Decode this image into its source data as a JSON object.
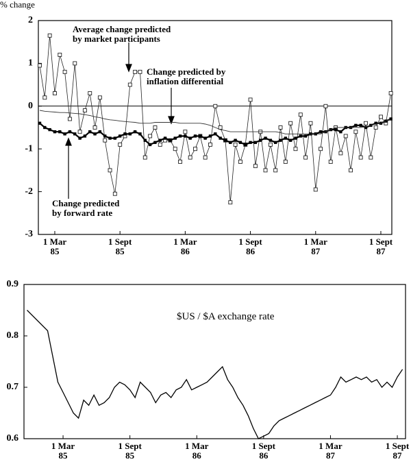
{
  "chart_data": [
    {
      "type": "line",
      "ylabel": "% change",
      "categories": [
        null,
        null,
        null,
        "1 Mar\n85",
        null,
        null,
        null,
        null,
        null,
        null,
        null,
        null,
        null,
        null,
        null,
        null,
        "1 Sept\n85",
        null,
        null,
        null,
        null,
        null,
        null,
        null,
        null,
        null,
        null,
        null,
        null,
        "1 Mar\n86",
        null,
        null,
        null,
        null,
        null,
        null,
        null,
        null,
        null,
        null,
        null,
        null,
        "1 Sept\n86",
        null,
        null,
        null,
        null,
        null,
        null,
        null,
        null,
        null,
        null,
        null,
        null,
        "1 Mar\n87",
        null,
        null,
        null,
        null,
        null,
        null,
        null,
        null,
        null,
        null,
        null,
        null,
        "1 Sept\n87",
        null,
        null
      ],
      "ylim": [
        -3,
        2
      ],
      "yticks": [
        -3,
        -2,
        -1,
        0,
        1,
        2
      ],
      "zero_line": true,
      "series": [
        {
          "name": "Average change predicted\nby market participants",
          "color": "#222",
          "marker": "open-square",
          "line_width": 0.8,
          "values": [
            0.95,
            0.2,
            1.65,
            0.3,
            1.2,
            0.8,
            -0.3,
            1.0,
            -0.6,
            -0.1,
            0.3,
            -0.5,
            0.2,
            -0.8,
            -1.5,
            -2.05,
            -0.9,
            -0.7,
            0.5,
            0.8,
            0.8,
            -1.2,
            -0.7,
            -0.5,
            -0.9,
            -0.8,
            -0.8,
            -1.0,
            -1.3,
            -0.6,
            -1.2,
            -1.0,
            -0.7,
            -1.2,
            -0.9,
            0.0,
            -0.5,
            -0.8,
            -2.25,
            -0.9,
            -1.3,
            -0.9,
            0.15,
            -1.4,
            -0.6,
            -1.5,
            -0.9,
            -1.5,
            -0.5,
            -1.3,
            -0.4,
            -1.0,
            -0.2,
            -1.2,
            -0.4,
            -1.95,
            -1.0,
            0.0,
            -1.3,
            -0.5,
            -1.1,
            -0.7,
            -1.5,
            -0.6,
            -1.2,
            -0.4,
            -1.2,
            -0.5,
            -0.25,
            -0.4,
            0.3
          ]
        },
        {
          "name": "Change predicted\nby forward rate",
          "color": "#000",
          "marker": "filled-square",
          "line_width": 2.2,
          "values": [
            -0.4,
            -0.5,
            -0.55,
            -0.6,
            -0.6,
            -0.65,
            -0.6,
            -0.65,
            -0.75,
            -0.7,
            -0.6,
            -0.65,
            -0.6,
            -0.7,
            -0.75,
            -0.75,
            -0.7,
            -0.65,
            -0.65,
            -0.6,
            -0.65,
            -0.8,
            -0.9,
            -0.85,
            -0.8,
            -0.75,
            -0.8,
            -0.75,
            -0.7,
            -0.7,
            -0.75,
            -0.7,
            -0.7,
            -0.75,
            -0.7,
            -0.65,
            -0.75,
            -0.8,
            -0.85,
            -0.8,
            -0.85,
            -0.9,
            -0.85,
            -0.85,
            -0.8,
            -0.75,
            -0.8,
            -0.85,
            -0.8,
            -0.75,
            -0.8,
            -0.75,
            -0.7,
            -0.7,
            -0.65,
            -0.65,
            -0.6,
            -0.6,
            -0.55,
            -0.55,
            -0.6,
            -0.5,
            -0.5,
            -0.45,
            -0.45,
            -0.5,
            -0.45,
            -0.4,
            -0.4,
            -0.35,
            -0.3
          ]
        },
        {
          "name": "Change predicted by\ninflation differential",
          "color": "#333",
          "marker": "none",
          "line_width": 0.9,
          "values": [
            -0.1,
            -0.12,
            -0.13,
            -0.14,
            -0.15,
            -0.15,
            -0.16,
            -0.17,
            -0.18,
            -0.2,
            -0.22,
            -0.25,
            -0.27,
            -0.3,
            -0.32,
            -0.33,
            -0.35,
            -0.36,
            -0.37,
            -0.38,
            -0.4,
            -0.4,
            -0.4,
            -0.38,
            -0.38,
            -0.38,
            -0.38,
            -0.38,
            -0.4,
            -0.4,
            -0.4,
            -0.4,
            -0.4,
            -0.42,
            -0.45,
            -0.5,
            -0.55,
            -0.57,
            -0.6,
            -0.6,
            -0.6,
            -0.6,
            -0.6,
            -0.6,
            -0.6,
            -0.6,
            -0.6,
            -0.6,
            -0.62,
            -0.65,
            -0.65,
            -0.65,
            -0.65,
            -0.65,
            -0.65,
            -0.65,
            -0.65,
            -0.6,
            -0.55,
            -0.5,
            -0.5,
            -0.5,
            -0.5,
            -0.5,
            -0.5,
            -0.48,
            -0.45,
            -0.42,
            -0.4,
            -0.35,
            -0.3
          ]
        }
      ]
    },
    {
      "type": "line",
      "annotation": "$US / $A exchange rate",
      "categories": [
        null,
        null,
        null,
        null,
        null,
        null,
        null,
        "1 Mar\n85",
        null,
        null,
        null,
        null,
        null,
        null,
        null,
        null,
        null,
        null,
        null,
        null,
        "1 Sept\n85",
        null,
        null,
        null,
        null,
        null,
        null,
        null,
        null,
        null,
        null,
        null,
        null,
        "1 Mar\n86",
        null,
        null,
        null,
        null,
        null,
        null,
        null,
        null,
        null,
        null,
        null,
        null,
        "1 Sept\n86",
        null,
        null,
        null,
        null,
        null,
        null,
        null,
        null,
        null,
        null,
        null,
        null,
        "1 Mar\n87",
        null,
        null,
        null,
        null,
        null,
        null,
        null,
        null,
        null,
        null,
        null,
        null,
        "1 Sept\n87",
        null
      ],
      "ylim": [
        0.6,
        0.9
      ],
      "yticks": [
        0.6,
        0.7,
        0.8,
        0.9
      ],
      "series": [
        {
          "color": "#000",
          "marker": "none",
          "line_width": 1.3,
          "values": [
            0.85,
            0.84,
            0.83,
            0.82,
            0.81,
            0.76,
            0.71,
            0.69,
            0.67,
            0.65,
            0.64,
            0.675,
            0.665,
            0.685,
            0.665,
            0.67,
            0.68,
            0.7,
            0.71,
            0.705,
            0.695,
            0.68,
            0.71,
            0.7,
            0.69,
            0.67,
            0.685,
            0.69,
            0.68,
            0.695,
            0.7,
            0.715,
            0.695,
            0.7,
            0.705,
            0.71,
            0.72,
            0.73,
            0.74,
            0.715,
            0.7,
            0.68,
            0.665,
            0.645,
            0.62,
            0.6,
            0.605,
            0.61,
            0.625,
            0.635,
            0.64,
            0.645,
            0.65,
            0.655,
            0.66,
            0.665,
            0.67,
            0.675,
            0.68,
            0.685,
            0.7,
            0.72,
            0.71,
            0.715,
            0.72,
            0.715,
            0.72,
            0.71,
            0.715,
            0.7,
            0.71,
            0.7,
            0.72,
            0.735
          ]
        }
      ]
    }
  ]
}
